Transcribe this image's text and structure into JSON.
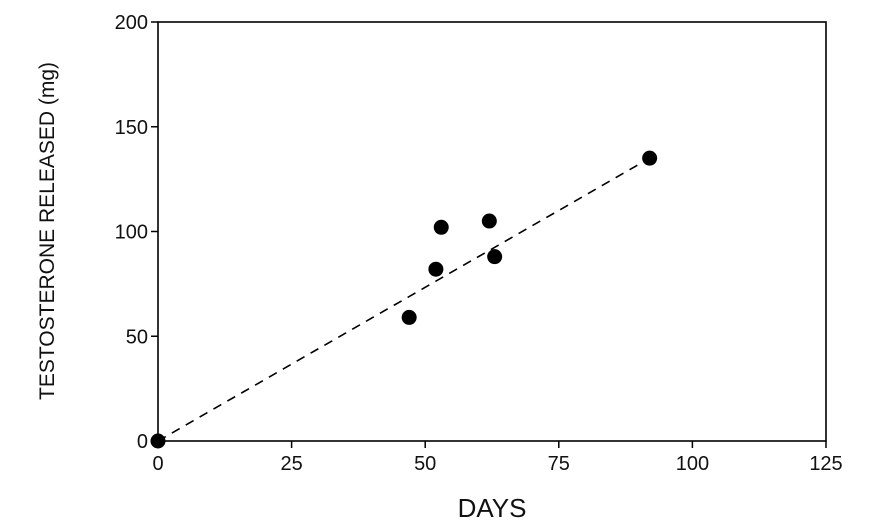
{
  "chart_data": {
    "type": "scatter",
    "xlabel": "DAYS",
    "ylabel": "TESTOSTERONE RELEASED (mg)",
    "xlim": [
      0,
      125
    ],
    "ylim": [
      0,
      200
    ],
    "xticks": [
      0,
      25,
      50,
      75,
      100,
      125
    ],
    "yticks": [
      0,
      50,
      100,
      150,
      200
    ],
    "grid": false,
    "series": [
      {
        "x": [
          0,
          47,
          52,
          53,
          62,
          63,
          92
        ],
        "y": [
          0,
          59,
          82,
          102,
          105,
          88,
          135
        ],
        "marker": "filled-circle",
        "color": "#000000"
      }
    ],
    "fit_line": {
      "style": "dashed",
      "x": [
        0,
        92
      ],
      "y": [
        0,
        135
      ]
    }
  }
}
